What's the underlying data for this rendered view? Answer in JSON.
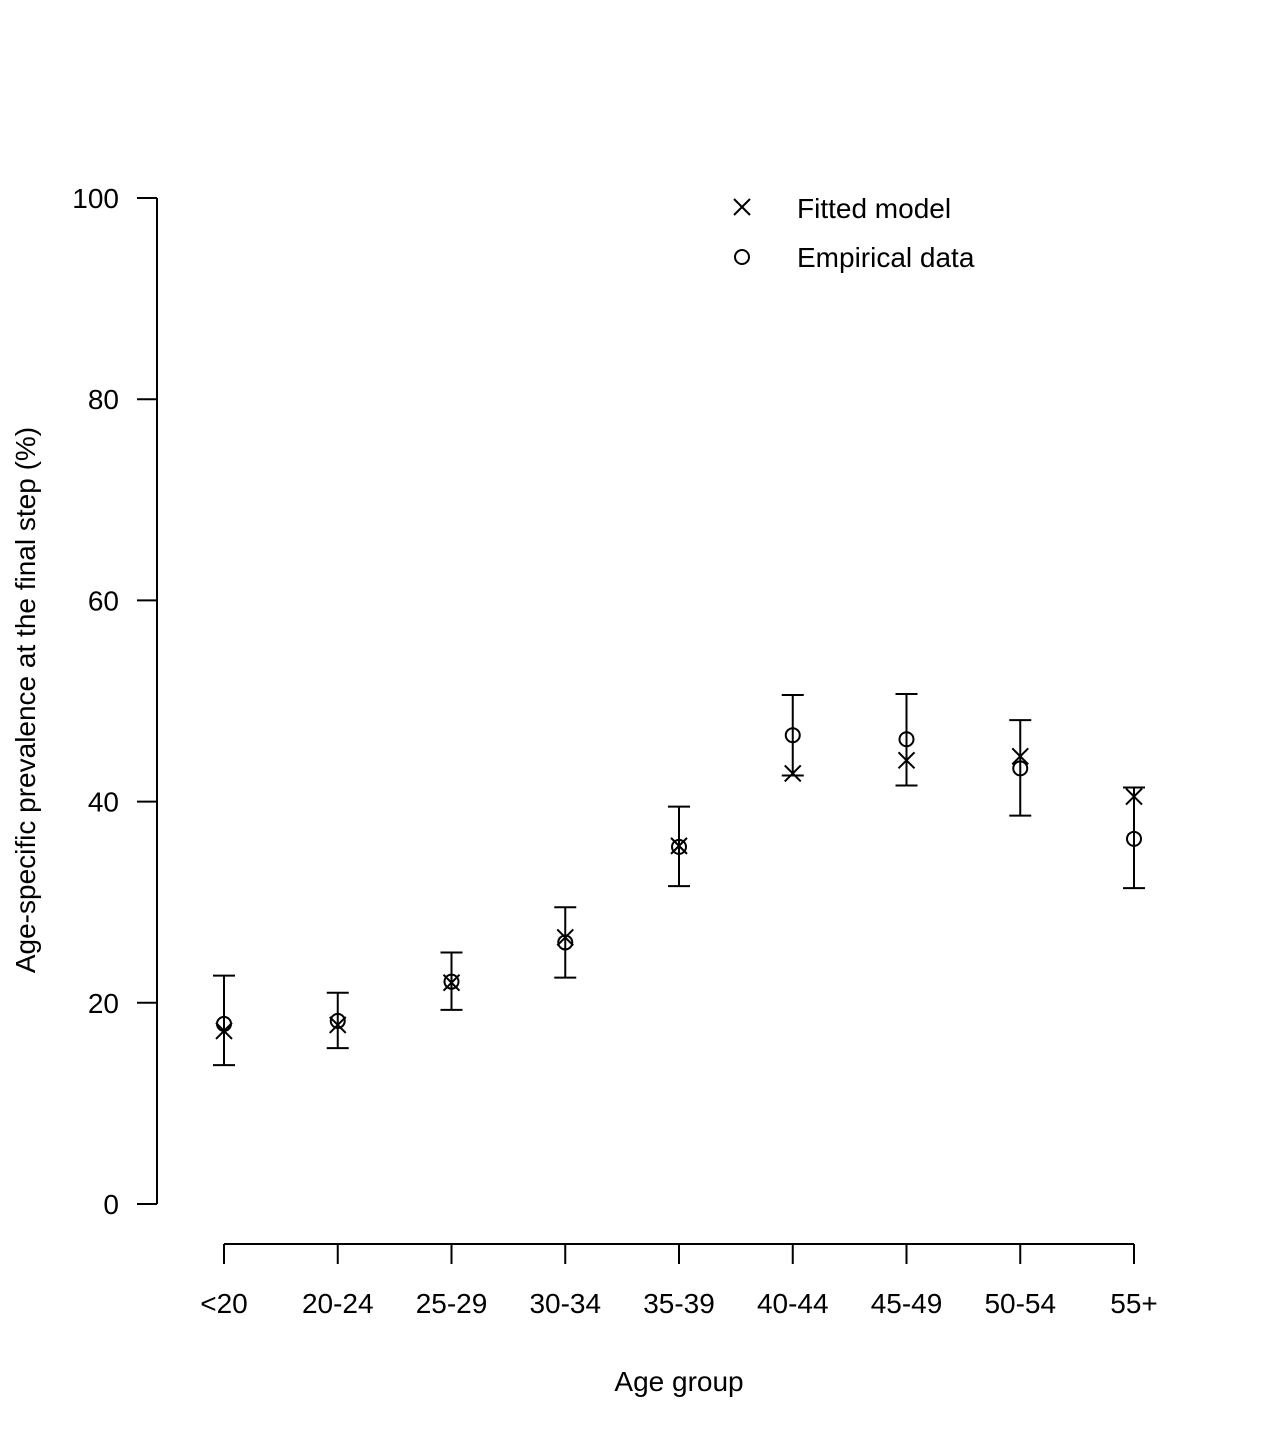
{
  "chart_data": {
    "type": "scatter",
    "xlabel": "Age group",
    "ylabel": "Age-specific prevalence at the final step (%)",
    "ylim": [
      0,
      100
    ],
    "yticks": [
      0,
      20,
      40,
      60,
      80,
      100
    ],
    "categories": [
      "<20",
      "20-24",
      "25-29",
      "30-34",
      "35-39",
      "40-44",
      "45-49",
      "50-54",
      "55+"
    ],
    "grid": false,
    "legend_position": "top-right",
    "series": [
      {
        "name": "Fitted model",
        "marker": "cross",
        "values": [
          17.2,
          17.8,
          22.0,
          26.5,
          35.6,
          42.8,
          44.1,
          44.5,
          40.5
        ]
      },
      {
        "name": "Empirical data",
        "marker": "circle",
        "values": [
          17.9,
          18.2,
          22.1,
          26.0,
          35.5,
          46.6,
          46.2,
          43.3,
          36.3
        ],
        "error_low": [
          13.8,
          15.5,
          19.3,
          22.5,
          31.6,
          42.6,
          41.6,
          38.6,
          31.4
        ],
        "error_high": [
          22.7,
          21.0,
          25.0,
          29.5,
          39.5,
          50.6,
          50.7,
          48.1,
          41.4
        ]
      }
    ]
  }
}
